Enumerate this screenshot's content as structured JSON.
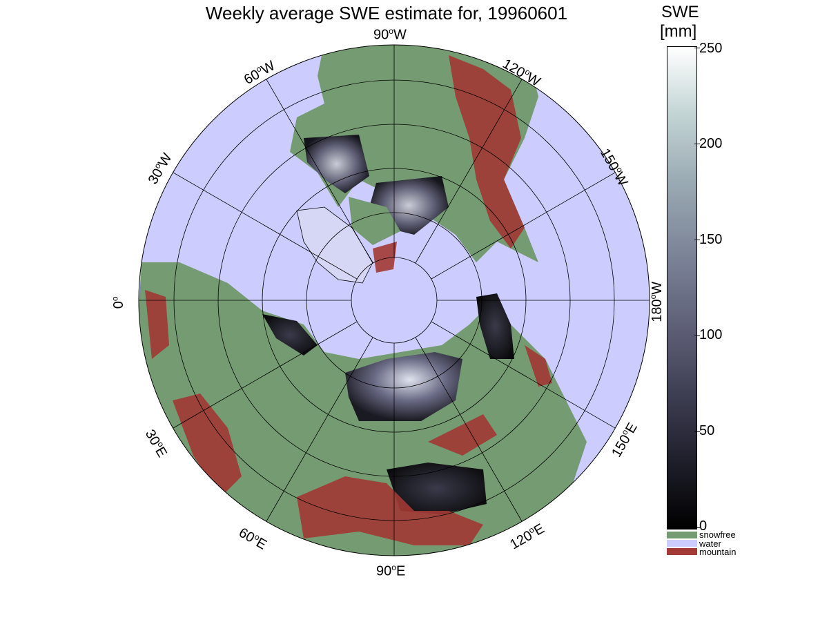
{
  "title": "Weekly average SWE estimate for, 19960601",
  "map": {
    "projection": "north polar stereographic",
    "longitude_labels": [
      {
        "lon": "90",
        "hemi": "W"
      },
      {
        "lon": "120",
        "hemi": "W"
      },
      {
        "lon": "150",
        "hemi": "W"
      },
      {
        "lon": "180",
        "hemi": "W"
      },
      {
        "lon": "150",
        "hemi": "E"
      },
      {
        "lon": "120",
        "hemi": "E"
      },
      {
        "lon": "90",
        "hemi": "E"
      },
      {
        "lon": "60",
        "hemi": "E"
      },
      {
        "lon": "30",
        "hemi": "E"
      },
      {
        "lon": "0",
        "hemi": ""
      },
      {
        "lon": "30",
        "hemi": "W"
      },
      {
        "lon": "60",
        "hemi": "W"
      }
    ],
    "degree_symbol": "o",
    "colors": {
      "water": "#ccccff",
      "snowfree": "#759b72",
      "mountain": "#a23934",
      "graticule": "#000000"
    }
  },
  "colorbar": {
    "title_line1": "SWE",
    "title_line2": "[mm]",
    "min": 0,
    "max": 250,
    "ticks": [
      "0",
      "50",
      "100",
      "150",
      "200",
      "250"
    ],
    "colormap": "bone",
    "legend": [
      {
        "label": "snowfree",
        "color": "#759b72"
      },
      {
        "label": "water",
        "color": "#ccccff"
      },
      {
        "label": "mountain",
        "color": "#a23934"
      }
    ]
  }
}
